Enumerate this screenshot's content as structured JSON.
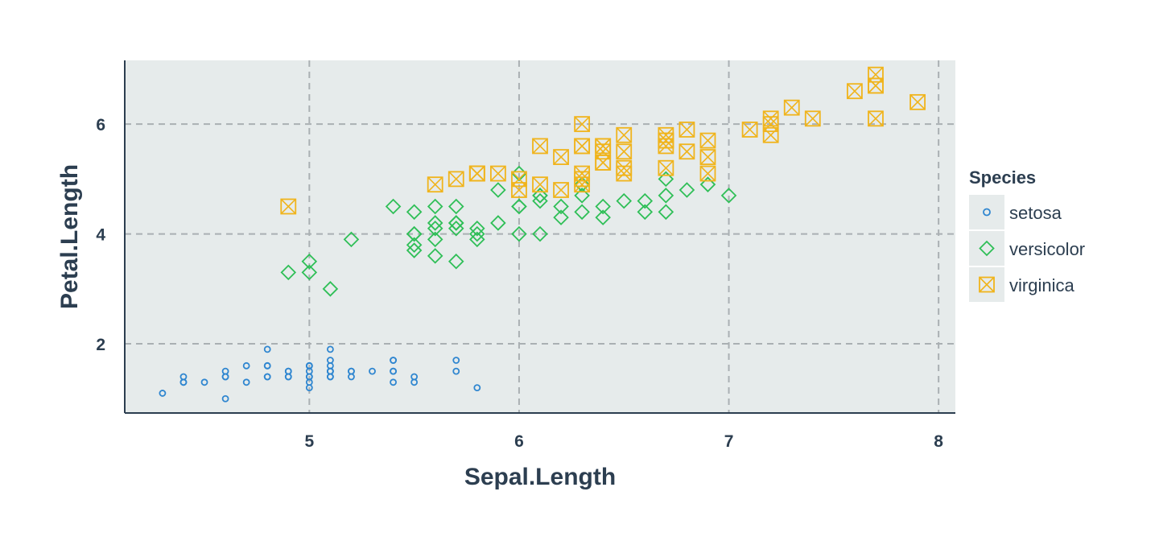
{
  "chart_data": {
    "type": "scatter",
    "xlabel": "Sepal.Length",
    "ylabel": "Petal.Length",
    "xlim": [
      4.12,
      8.08
    ],
    "ylim": [
      0.74,
      7.16
    ],
    "x_ticks": [
      "5",
      "6",
      "7",
      "8"
    ],
    "y_ticks": [
      "2",
      "4",
      "6"
    ],
    "grid": true,
    "legend_title": "Species",
    "legend_position": "right",
    "colors": {
      "panel": "#e6ebeb",
      "grid": "#aab0b3",
      "axis": "#2c3e50",
      "text": "#2c3e50"
    },
    "series": [
      {
        "name": "setosa",
        "marker": "circle",
        "color": "#2f86d0",
        "points": [
          [
            5.1,
            1.4
          ],
          [
            4.9,
            1.4
          ],
          [
            4.7,
            1.3
          ],
          [
            4.6,
            1.5
          ],
          [
            5.0,
            1.4
          ],
          [
            5.4,
            1.7
          ],
          [
            4.6,
            1.4
          ],
          [
            5.0,
            1.5
          ],
          [
            4.4,
            1.4
          ],
          [
            4.9,
            1.5
          ],
          [
            5.4,
            1.5
          ],
          [
            4.8,
            1.6
          ],
          [
            4.8,
            1.4
          ],
          [
            4.3,
            1.1
          ],
          [
            5.8,
            1.2
          ],
          [
            5.7,
            1.5
          ],
          [
            5.4,
            1.3
          ],
          [
            5.1,
            1.4
          ],
          [
            5.7,
            1.7
          ],
          [
            5.1,
            1.5
          ],
          [
            5.4,
            1.7
          ],
          [
            5.1,
            1.5
          ],
          [
            4.6,
            1.0
          ],
          [
            5.1,
            1.7
          ],
          [
            4.8,
            1.9
          ],
          [
            5.0,
            1.6
          ],
          [
            5.0,
            1.6
          ],
          [
            5.2,
            1.5
          ],
          [
            5.2,
            1.4
          ],
          [
            4.7,
            1.6
          ],
          [
            4.8,
            1.6
          ],
          [
            5.4,
            1.5
          ],
          [
            5.2,
            1.5
          ],
          [
            5.5,
            1.4
          ],
          [
            4.9,
            1.5
          ],
          [
            5.0,
            1.2
          ],
          [
            5.5,
            1.3
          ],
          [
            4.9,
            1.4
          ],
          [
            4.4,
            1.3
          ],
          [
            5.1,
            1.5
          ],
          [
            5.0,
            1.3
          ],
          [
            4.5,
            1.3
          ],
          [
            4.4,
            1.3
          ],
          [
            5.0,
            1.6
          ],
          [
            5.1,
            1.9
          ],
          [
            4.8,
            1.4
          ],
          [
            5.1,
            1.6
          ],
          [
            4.6,
            1.4
          ],
          [
            5.3,
            1.5
          ],
          [
            5.0,
            1.4
          ]
        ]
      },
      {
        "name": "versicolor",
        "marker": "diamond",
        "color": "#2fbf57",
        "points": [
          [
            7.0,
            4.7
          ],
          [
            6.4,
            4.5
          ],
          [
            6.9,
            4.9
          ],
          [
            5.5,
            4.0
          ],
          [
            6.5,
            4.6
          ],
          [
            5.7,
            4.5
          ],
          [
            6.3,
            4.7
          ],
          [
            4.9,
            3.3
          ],
          [
            6.6,
            4.6
          ],
          [
            5.2,
            3.9
          ],
          [
            5.0,
            3.5
          ],
          [
            5.9,
            4.2
          ],
          [
            6.0,
            4.0
          ],
          [
            6.1,
            4.7
          ],
          [
            5.6,
            3.6
          ],
          [
            6.7,
            4.4
          ],
          [
            5.6,
            4.5
          ],
          [
            5.8,
            4.1
          ],
          [
            6.2,
            4.5
          ],
          [
            5.6,
            3.9
          ],
          [
            5.9,
            4.8
          ],
          [
            6.1,
            4.0
          ],
          [
            6.3,
            4.9
          ],
          [
            6.1,
            4.7
          ],
          [
            6.4,
            4.3
          ],
          [
            6.6,
            4.4
          ],
          [
            6.8,
            4.8
          ],
          [
            6.7,
            5.0
          ],
          [
            6.0,
            4.5
          ],
          [
            5.7,
            3.5
          ],
          [
            5.5,
            3.8
          ],
          [
            5.5,
            3.7
          ],
          [
            5.8,
            3.9
          ],
          [
            6.0,
            5.1
          ],
          [
            5.4,
            4.5
          ],
          [
            6.0,
            4.5
          ],
          [
            6.7,
            4.7
          ],
          [
            6.3,
            4.4
          ],
          [
            5.6,
            4.1
          ],
          [
            5.5,
            4.0
          ],
          [
            5.5,
            4.4
          ],
          [
            6.1,
            4.6
          ],
          [
            5.8,
            4.0
          ],
          [
            5.0,
            3.3
          ],
          [
            5.6,
            4.2
          ],
          [
            5.7,
            4.2
          ],
          [
            5.7,
            4.2
          ],
          [
            6.2,
            4.3
          ],
          [
            5.1,
            3.0
          ],
          [
            5.7,
            4.1
          ]
        ]
      },
      {
        "name": "virginica",
        "marker": "square-cross",
        "color": "#f0b41c",
        "points": [
          [
            6.3,
            6.0
          ],
          [
            5.8,
            5.1
          ],
          [
            7.1,
            5.9
          ],
          [
            6.3,
            5.6
          ],
          [
            6.5,
            5.8
          ],
          [
            7.6,
            6.6
          ],
          [
            4.9,
            4.5
          ],
          [
            7.3,
            6.3
          ],
          [
            6.7,
            5.8
          ],
          [
            7.2,
            6.1
          ],
          [
            6.5,
            5.1
          ],
          [
            6.4,
            5.3
          ],
          [
            6.8,
            5.5
          ],
          [
            5.7,
            5.0
          ],
          [
            5.8,
            5.1
          ],
          [
            6.4,
            5.3
          ],
          [
            6.5,
            5.5
          ],
          [
            7.7,
            6.7
          ],
          [
            7.7,
            6.9
          ],
          [
            6.0,
            5.0
          ],
          [
            6.9,
            5.7
          ],
          [
            5.6,
            4.9
          ],
          [
            7.7,
            6.7
          ],
          [
            6.3,
            4.9
          ],
          [
            6.7,
            5.7
          ],
          [
            7.2,
            6.0
          ],
          [
            6.2,
            4.8
          ],
          [
            6.1,
            4.9
          ],
          [
            6.4,
            5.6
          ],
          [
            7.2,
            5.8
          ],
          [
            7.4,
            6.1
          ],
          [
            7.9,
            6.4
          ],
          [
            6.4,
            5.6
          ],
          [
            6.3,
            5.1
          ],
          [
            6.1,
            5.6
          ],
          [
            7.7,
            6.1
          ],
          [
            6.3,
            5.6
          ],
          [
            6.4,
            5.5
          ],
          [
            6.0,
            4.8
          ],
          [
            6.9,
            5.4
          ],
          [
            6.7,
            5.6
          ],
          [
            6.9,
            5.1
          ],
          [
            5.8,
            5.1
          ],
          [
            6.8,
            5.9
          ],
          [
            6.7,
            5.7
          ],
          [
            6.7,
            5.2
          ],
          [
            6.3,
            5.0
          ],
          [
            6.5,
            5.2
          ],
          [
            6.2,
            5.4
          ],
          [
            5.9,
            5.1
          ]
        ]
      }
    ]
  }
}
